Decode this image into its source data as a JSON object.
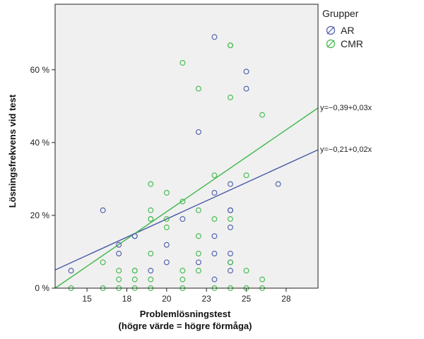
{
  "chart_data": {
    "type": "scatter",
    "title": "",
    "xlabel": "Problemlösningstest",
    "xlabel2": "(högre värde = högre förmåga)",
    "ylabel": "Lösningsfrekvens vid test",
    "xlim": [
      13,
      29.5
    ],
    "ylim": [
      0,
      78
    ],
    "xticks": [
      15,
      18,
      20,
      23,
      25,
      28
    ],
    "xtick_positions": [
      15,
      17.5,
      20,
      22.5,
      25,
      27.5
    ],
    "yticks": [
      0,
      20,
      40,
      60
    ],
    "ytick_labels": [
      "0 %",
      "20 %",
      "40 %",
      "60 %"
    ],
    "grid": false,
    "legend": {
      "title": "Grupper",
      "position": "right",
      "entries": [
        "AR",
        "CMR"
      ]
    },
    "series": [
      {
        "name": "AR",
        "color": "#4a5aa8",
        "marker": "open-circle",
        "points": [
          [
            14,
            4.8
          ],
          [
            16,
            21.4
          ],
          [
            17,
            11.9
          ],
          [
            17,
            9.5
          ],
          [
            18,
            14.3
          ],
          [
            18,
            14.3
          ],
          [
            19,
            4.8
          ],
          [
            20,
            11.9
          ],
          [
            20,
            7.1
          ],
          [
            21,
            19
          ],
          [
            22,
            42.9
          ],
          [
            22,
            7.1
          ],
          [
            23,
            69
          ],
          [
            23,
            26.2
          ],
          [
            23,
            14.3
          ],
          [
            23,
            9.5
          ],
          [
            23,
            2.4
          ],
          [
            24,
            28.6
          ],
          [
            24,
            21.4
          ],
          [
            24,
            21.4
          ],
          [
            24,
            16.7
          ],
          [
            24,
            9.5
          ],
          [
            24,
            7.1
          ],
          [
            24,
            4.8
          ],
          [
            25,
            59.5
          ],
          [
            25,
            54.8
          ],
          [
            27,
            28.6
          ]
        ],
        "fit": {
          "label": "y=−0,21+0,02x",
          "intercept": -0.21,
          "slope": 0.02
        }
      },
      {
        "name": "CMR",
        "color": "#3fb84a",
        "marker": "open-circle",
        "points": [
          [
            14,
            0
          ],
          [
            16,
            7.1
          ],
          [
            16,
            0
          ],
          [
            17,
            4.8
          ],
          [
            17,
            2.4
          ],
          [
            17,
            0
          ],
          [
            18,
            4.8
          ],
          [
            18,
            4.8
          ],
          [
            18,
            2.4
          ],
          [
            18,
            0
          ],
          [
            19,
            28.6
          ],
          [
            19,
            21.4
          ],
          [
            19,
            19
          ],
          [
            19,
            19
          ],
          [
            19,
            9.5
          ],
          [
            19,
            2.4
          ],
          [
            19,
            0
          ],
          [
            20,
            26.2
          ],
          [
            20,
            19
          ],
          [
            20,
            16.7
          ],
          [
            21,
            61.9
          ],
          [
            21,
            23.8
          ],
          [
            21,
            4.8
          ],
          [
            21,
            2.4
          ],
          [
            21,
            0
          ],
          [
            22,
            54.8
          ],
          [
            22,
            21.4
          ],
          [
            22,
            14.3
          ],
          [
            22,
            9.5
          ],
          [
            22,
            4.8
          ],
          [
            23,
            31
          ],
          [
            23,
            19
          ],
          [
            23,
            0
          ],
          [
            24,
            66.7
          ],
          [
            24,
            66.7
          ],
          [
            24,
            52.4
          ],
          [
            24,
            19
          ],
          [
            24,
            7.1
          ],
          [
            24,
            0
          ],
          [
            25,
            31
          ],
          [
            25,
            4.8
          ],
          [
            25,
            0
          ],
          [
            26,
            47.6
          ],
          [
            26,
            2.4
          ],
          [
            26,
            0
          ]
        ],
        "fit": {
          "label": "y=−0,39+0,03x",
          "intercept": -0.39,
          "slope": 0.03
        }
      }
    ],
    "frame_color": "#222222",
    "plot_background": "#f0f0f0"
  }
}
